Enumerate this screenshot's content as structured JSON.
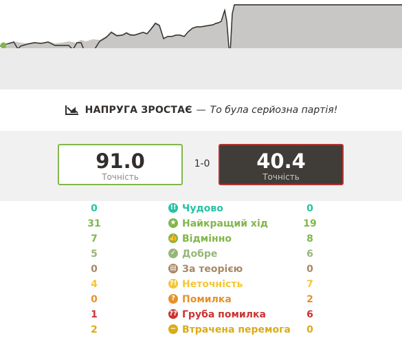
{
  "graph": {
    "white_fill": "#ffffff",
    "black_fill": "#c9c7c5",
    "line_color": "#312e2b",
    "marker_color": "#81b64c"
  },
  "tension": {
    "icon": "chart-trend-icon",
    "title": "НАПРУГА ЗРОСТАЄ",
    "dash": "—",
    "subtitle": "То була серйозна партія!"
  },
  "accuracy": {
    "white_value": "91.0",
    "white_label": "Точність",
    "black_value": "40.4",
    "black_label": "Точність",
    "score": "1-0"
  },
  "moves": [
    {
      "label": "Чудово",
      "white": "0",
      "black": "0",
      "color": "#26c2a3",
      "icon": "brilliant-icon",
      "glyph": "!!"
    },
    {
      "label": "Найкращий хід",
      "white": "31",
      "black": "19",
      "color": "#81b64c",
      "icon": "best-move-icon",
      "glyph": "★"
    },
    {
      "label": "Відмінно",
      "white": "7",
      "black": "8",
      "color": "#81b64c",
      "icon": "excellent-icon",
      "glyph": "👍"
    },
    {
      "label": "Добре",
      "white": "5",
      "black": "6",
      "color": "#95b776",
      "icon": "good-icon",
      "glyph": "✓"
    },
    {
      "label": "За теорією",
      "white": "0",
      "black": "0",
      "color": "#a88865",
      "icon": "book-icon",
      "glyph": "▤"
    },
    {
      "label": "Неточність",
      "white": "4",
      "black": "7",
      "color": "#f7c631",
      "icon": "inaccuracy-icon",
      "glyph": "?!"
    },
    {
      "label": "Помилка",
      "white": "0",
      "black": "2",
      "color": "#e6912c",
      "icon": "mistake-icon",
      "glyph": "?"
    },
    {
      "label": "Груба помилка",
      "white": "1",
      "black": "6",
      "color": "#ca3431",
      "icon": "blunder-icon",
      "glyph": "??"
    },
    {
      "label": "Втрачена перемога",
      "white": "2",
      "black": "0",
      "color": "#dbac16",
      "icon": "missed-win-icon",
      "glyph": "−"
    }
  ]
}
